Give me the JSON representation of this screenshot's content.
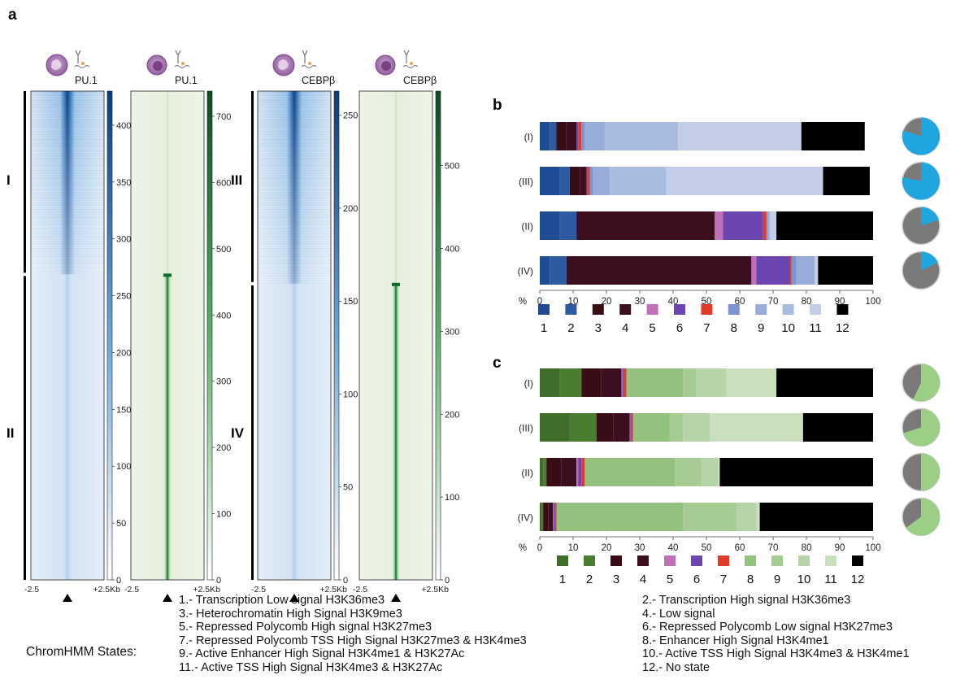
{
  "panel_labels": {
    "a": "a",
    "b": "b",
    "c": "c"
  },
  "heatmaps": [
    {
      "label": "PU.1",
      "cell_icon": "macrophage-cell-icon",
      "colormap": "blue",
      "cluster_split": 0.375,
      "cbar_ticks": [
        0,
        50,
        100,
        150,
        200,
        250,
        300,
        350,
        400
      ],
      "cbar_max": 430
    },
    {
      "label": "PU.1",
      "cell_icon": "dendritic-cell-icon",
      "colormap": "green",
      "cluster_split": 0.375,
      "cbar_ticks": [
        0,
        100,
        200,
        300,
        400,
        500,
        600,
        700
      ],
      "cbar_max": 738
    },
    {
      "label": "CEBPβ",
      "cell_icon": "macrophage-cell-icon",
      "colormap": "blue",
      "cluster_split": 0.394,
      "cbar_ticks": [
        0,
        50,
        100,
        150,
        200,
        250
      ],
      "cbar_max": 263
    },
    {
      "label": "CEBPβ",
      "cell_icon": "dendritic-cell-icon",
      "colormap": "green",
      "cluster_split": 0.394,
      "cbar_ticks": [
        0,
        100,
        200,
        300,
        400,
        500
      ],
      "cbar_max": 590
    }
  ],
  "heatmap_axis": {
    "left": "-2.5",
    "right": "+2.5Kb"
  },
  "cluster_labels": [
    "I",
    "II",
    "III",
    "IV"
  ],
  "chart_data": [
    {
      "type": "bar",
      "orientation": "horizontal",
      "stacked": true,
      "panel": "b",
      "categories": [
        "(I)",
        "(III)",
        "(II)",
        "(IV)"
      ],
      "x_unit_label": "%",
      "xlim": [
        0,
        100
      ],
      "xticks": [
        0,
        10,
        20,
        30,
        40,
        50,
        60,
        70,
        80,
        90,
        100
      ],
      "state_colors": [
        "#1f4b94",
        "#2d5aa0",
        "#3a0c16",
        "#3b0f1f",
        "#c070b8",
        "#6b45b0",
        "#e03a2a",
        "#7b95cf",
        "#97acd8",
        "#aabbe0",
        "#c4cde8",
        "#000000"
      ],
      "legend_labels": [
        "1",
        "2",
        "3",
        "4",
        "5",
        "6",
        "7",
        "8",
        "9",
        "10",
        "11",
        "12"
      ],
      "series": [
        {
          "state": 1,
          "values": [
            3,
            6,
            6,
            3
          ]
        },
        {
          "state": 2,
          "values": [
            2,
            3,
            5,
            5
          ]
        },
        {
          "state": 3,
          "values": [
            3,
            3,
            0,
            0
          ]
        },
        {
          "state": 4,
          "values": [
            3,
            2,
            41.5,
            55.5
          ]
        },
        {
          "state": 5,
          "values": [
            0,
            0,
            2.5,
            1.5
          ]
        },
        {
          "state": 6,
          "values": [
            0.5,
            0.3,
            12,
            10
          ]
        },
        {
          "state": 7,
          "values": [
            1,
            0.7,
            1,
            0.5
          ]
        },
        {
          "state": 8,
          "values": [
            1,
            1,
            0.3,
            1.5
          ]
        },
        {
          "state": 9,
          "values": [
            6,
            5,
            0.7,
            5.5
          ]
        },
        {
          "state": 10,
          "values": [
            22,
            17,
            0,
            0
          ]
        },
        {
          "state": 11,
          "values": [
            37,
            47,
            2,
            1
          ]
        },
        {
          "state": 12,
          "values": [
            19,
            14,
            29,
            16.5
          ]
        }
      ],
      "pies": [
        {
          "category": "(I)",
          "colored_fraction": 0.8
        },
        {
          "category": "(III)",
          "colored_fraction": 0.78
        },
        {
          "category": "(II)",
          "colored_fraction": 0.2
        },
        {
          "category": "(IV)",
          "colored_fraction": 0.18
        }
      ],
      "pie_color": "#1fa6e0"
    },
    {
      "type": "bar",
      "orientation": "horizontal",
      "stacked": true,
      "panel": "c",
      "categories": [
        "(I)",
        "(III)",
        "(II)",
        "(IV)"
      ],
      "x_unit_label": "%",
      "xlim": [
        0,
        100
      ],
      "xticks": [
        0,
        10,
        20,
        30,
        40,
        50,
        60,
        70,
        80,
        90,
        100
      ],
      "state_colors": [
        "#3f6e2a",
        "#4a7d30",
        "#3a0c16",
        "#3b0f1f",
        "#c070b8",
        "#6b45b0",
        "#e03a2a",
        "#93c17e",
        "#a6cb93",
        "#b7d4a8",
        "#c9dfbd",
        "#000000"
      ],
      "legend_labels": [
        "1",
        "2",
        "3",
        "4",
        "5",
        "6",
        "7",
        "8",
        "9",
        "10",
        "11",
        "12"
      ],
      "series": [
        {
          "state": 1,
          "values": [
            6,
            9,
            1,
            0.5
          ]
        },
        {
          "state": 2,
          "values": [
            6.5,
            8,
            1,
            0.5
          ]
        },
        {
          "state": 3,
          "values": [
            6,
            5,
            4.5,
            1.5
          ]
        },
        {
          "state": 4,
          "values": [
            6,
            5,
            4.5,
            1.5
          ]
        },
        {
          "state": 5,
          "values": [
            0.3,
            0.2,
            0.5,
            0.3
          ]
        },
        {
          "state": 6,
          "values": [
            0.4,
            0.3,
            1,
            0.5
          ]
        },
        {
          "state": 7,
          "values": [
            0.8,
            0.5,
            1,
            0.2
          ]
        },
        {
          "state": 8,
          "values": [
            17,
            11,
            27,
            38
          ]
        },
        {
          "state": 9,
          "values": [
            4,
            4,
            8,
            16
          ]
        },
        {
          "state": 10,
          "values": [
            9,
            8,
            5,
            6
          ]
        },
        {
          "state": 11,
          "values": [
            15,
            28,
            0.5,
            1
          ]
        },
        {
          "state": 12,
          "values": [
            29,
            21,
            46,
            34
          ]
        }
      ],
      "pies": [
        {
          "category": "(I)",
          "colored_fraction": 0.57
        },
        {
          "category": "(III)",
          "colored_fraction": 0.7
        },
        {
          "category": "(II)",
          "colored_fraction": 0.5
        },
        {
          "category": "(IV)",
          "colored_fraction": 0.65
        }
      ],
      "pie_color": "#9ccf86"
    }
  ],
  "legend": {
    "title": "ChromHMM States:",
    "col1": [
      "1.- Transcription Low signal H3K36me3",
      "3.- Heterochromatin High Signal H3K9me3",
      "5.- Repressed Polycomb High signal H3K27me3",
      "7.- Repressed Polycomb TSS High Signal H3K27me3 & H3K4me3",
      "9.- Active Enhancer High Signal H3K4me1 & H3K27Ac",
      "11.- Active TSS High Signal H3K4me3 & H3K27Ac"
    ],
    "col2": [
      "2.- Transcription High signal H3K36me3",
      "4.- Low signal",
      "6.- Repressed Polycomb Low signal H3K27me3",
      "8.- Enhancer High Signal H3K4me1",
      "10.- Active TSS High Signal H3K4me3 & H3K4me1",
      "12.- No state"
    ]
  }
}
